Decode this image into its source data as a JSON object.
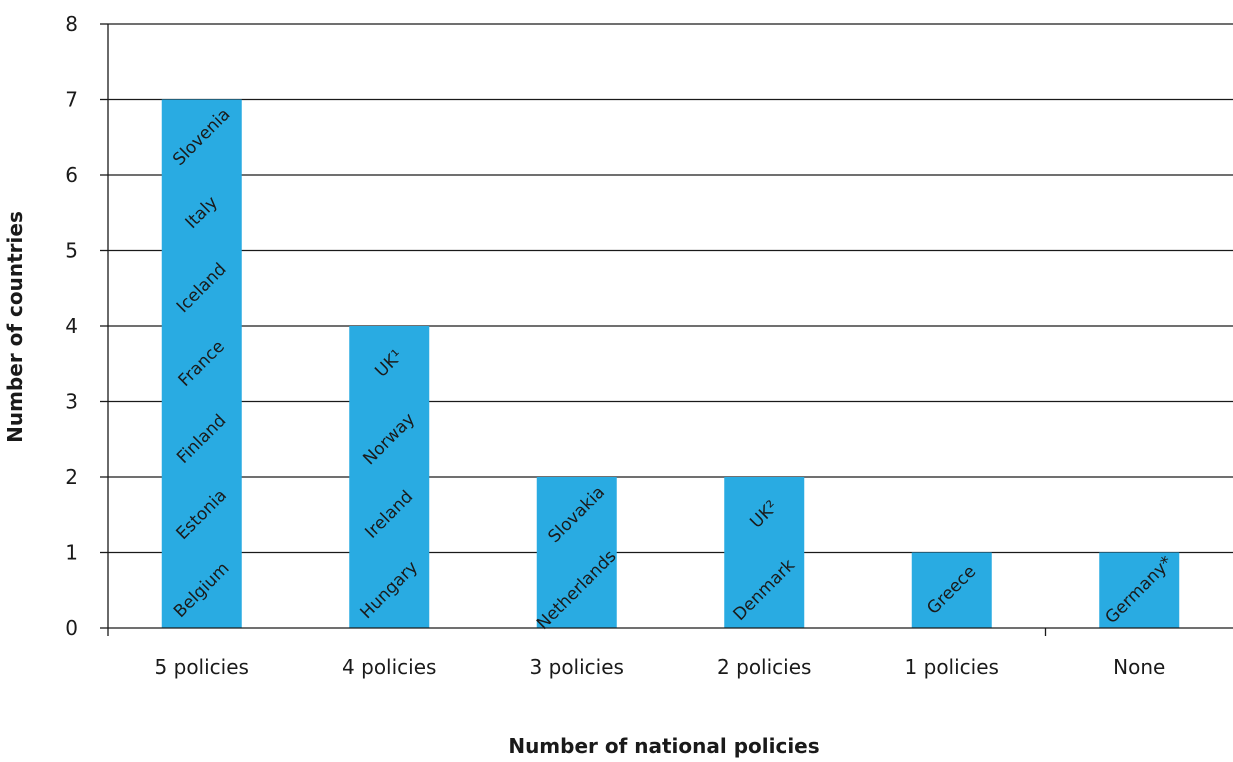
{
  "chart_data": {
    "type": "bar",
    "title": "",
    "xlabel": "Number of national policies",
    "ylabel": "Number of countries",
    "ylim": [
      0,
      8
    ],
    "yticks": [
      0,
      1,
      2,
      3,
      4,
      5,
      6,
      7,
      8
    ],
    "grid": true,
    "legend": "none",
    "bar_color": "#29abe2",
    "categories": [
      "5 policies",
      "4 policies",
      "3 policies",
      "2 policies",
      "1 policies",
      "None"
    ],
    "values": [
      7,
      4,
      2,
      2,
      1,
      1
    ],
    "bar_labels": [
      [
        "Belgium",
        "Estonia",
        "Finland",
        "France",
        "Iceland",
        "Italy",
        "Slovenia"
      ],
      [
        "Hungary",
        "Ireland",
        "Norway",
        "UK¹"
      ],
      [
        "Netherlands",
        "Slovakia"
      ],
      [
        "Denmark",
        "UK²"
      ],
      [
        "Greece"
      ],
      [
        "Germany*"
      ]
    ]
  }
}
